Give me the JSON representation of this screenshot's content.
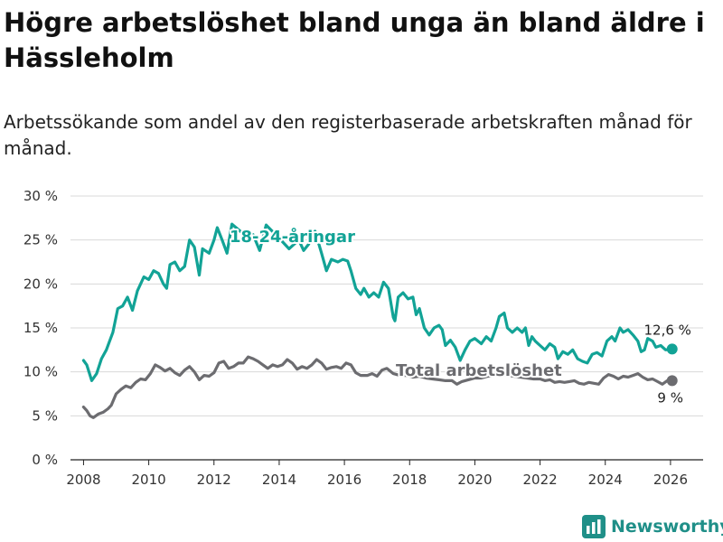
{
  "chart_data": {
    "type": "line",
    "title": "Högre arbetslöshet bland unga än bland äldre i Hässleholm",
    "subtitle": "Arbetssökande som andel av den registerbaserade arbetskraften månad för månad.",
    "xlabel": "",
    "ylabel": "",
    "xlim": [
      2007.6,
      2027.0
    ],
    "ylim": [
      0,
      30
    ],
    "x_ticks": [
      "2008",
      "2010",
      "2012",
      "2014",
      "2016",
      "2018",
      "2020",
      "2022",
      "2024",
      "2026"
    ],
    "y_ticks": [
      "0 %",
      "5 %",
      "10 %",
      "15 %",
      "20 %",
      "25 %",
      "30 %"
    ],
    "grid": "horizontal",
    "series": [
      {
        "name": "18-24-åringar",
        "label": "18-24-åringar",
        "color": "#12a396",
        "end_label": "12,6 %",
        "points": [
          [
            2008.0,
            11.3
          ],
          [
            2008.1,
            10.8
          ],
          [
            2008.25,
            9.0
          ],
          [
            2008.4,
            9.8
          ],
          [
            2008.55,
            11.5
          ],
          [
            2008.7,
            12.5
          ],
          [
            2008.9,
            14.5
          ],
          [
            2009.05,
            17.2
          ],
          [
            2009.2,
            17.5
          ],
          [
            2009.35,
            18.5
          ],
          [
            2009.5,
            17.0
          ],
          [
            2009.65,
            19.2
          ],
          [
            2009.85,
            20.8
          ],
          [
            2010.0,
            20.5
          ],
          [
            2010.15,
            21.5
          ],
          [
            2010.3,
            21.2
          ],
          [
            2010.45,
            20.0
          ],
          [
            2010.55,
            19.5
          ],
          [
            2010.65,
            22.2
          ],
          [
            2010.8,
            22.5
          ],
          [
            2010.95,
            21.5
          ],
          [
            2011.1,
            22.0
          ],
          [
            2011.25,
            25.0
          ],
          [
            2011.4,
            24.2
          ],
          [
            2011.55,
            21.0
          ],
          [
            2011.65,
            24.0
          ],
          [
            2011.85,
            23.5
          ],
          [
            2012.0,
            25.0
          ],
          [
            2012.1,
            26.4
          ],
          [
            2012.25,
            25.0
          ],
          [
            2012.4,
            23.5
          ],
          [
            2012.55,
            26.8
          ],
          [
            2013.0,
            25.4
          ],
          [
            2013.2,
            25.6
          ],
          [
            2013.4,
            23.8
          ],
          [
            2013.6,
            26.7
          ],
          [
            2014.0,
            25.2
          ],
          [
            2014.3,
            24.0
          ],
          [
            2014.6,
            25.0
          ],
          [
            2014.75,
            23.8
          ],
          [
            2014.9,
            24.5
          ],
          [
            2015.1,
            26.0
          ],
          [
            2015.3,
            23.5
          ],
          [
            2015.45,
            21.5
          ],
          [
            2015.6,
            22.8
          ],
          [
            2015.8,
            22.5
          ],
          [
            2015.95,
            22.8
          ],
          [
            2016.1,
            22.6
          ],
          [
            2016.2,
            21.5
          ],
          [
            2016.35,
            19.5
          ],
          [
            2016.5,
            18.8
          ],
          [
            2016.6,
            19.5
          ],
          [
            2016.75,
            18.5
          ],
          [
            2016.9,
            19.0
          ],
          [
            2017.05,
            18.5
          ],
          [
            2017.2,
            20.2
          ],
          [
            2017.35,
            19.5
          ],
          [
            2017.5,
            16.2
          ],
          [
            2017.55,
            15.8
          ],
          [
            2017.65,
            18.5
          ],
          [
            2017.8,
            19.0
          ],
          [
            2017.95,
            18.3
          ],
          [
            2018.1,
            18.5
          ],
          [
            2018.2,
            16.5
          ],
          [
            2018.3,
            17.2
          ],
          [
            2018.45,
            15.0
          ],
          [
            2018.6,
            14.2
          ],
          [
            2018.75,
            15.0
          ],
          [
            2018.9,
            15.3
          ],
          [
            2019.0,
            14.8
          ],
          [
            2019.1,
            13.0
          ],
          [
            2019.25,
            13.6
          ],
          [
            2019.4,
            12.8
          ],
          [
            2019.55,
            11.3
          ],
          [
            2019.7,
            12.5
          ],
          [
            2019.85,
            13.5
          ],
          [
            2020.0,
            13.8
          ],
          [
            2020.2,
            13.2
          ],
          [
            2020.35,
            14.0
          ],
          [
            2020.5,
            13.5
          ],
          [
            2020.65,
            15.0
          ],
          [
            2020.75,
            16.3
          ],
          [
            2020.9,
            16.7
          ],
          [
            2021.0,
            15.0
          ],
          [
            2021.15,
            14.5
          ],
          [
            2021.3,
            15.0
          ],
          [
            2021.45,
            14.5
          ],
          [
            2021.55,
            15.0
          ],
          [
            2021.65,
            13.0
          ],
          [
            2021.75,
            14.0
          ],
          [
            2021.85,
            13.5
          ],
          [
            2022.0,
            13.0
          ],
          [
            2022.15,
            12.5
          ],
          [
            2022.3,
            13.2
          ],
          [
            2022.45,
            12.8
          ],
          [
            2022.55,
            11.5
          ],
          [
            2022.7,
            12.3
          ],
          [
            2022.85,
            12.0
          ],
          [
            2023.0,
            12.5
          ],
          [
            2023.15,
            11.5
          ],
          [
            2023.3,
            11.2
          ],
          [
            2023.45,
            11.0
          ],
          [
            2023.6,
            12.0
          ],
          [
            2023.75,
            12.2
          ],
          [
            2023.9,
            11.8
          ],
          [
            2024.05,
            13.5
          ],
          [
            2024.2,
            14.0
          ],
          [
            2024.3,
            13.5
          ],
          [
            2024.45,
            15.0
          ],
          [
            2024.55,
            14.5
          ],
          [
            2024.7,
            14.8
          ],
          [
            2024.85,
            14.2
          ],
          [
            2025.0,
            13.5
          ],
          [
            2025.1,
            12.3
          ],
          [
            2025.2,
            12.5
          ],
          [
            2025.3,
            13.8
          ],
          [
            2025.45,
            13.5
          ],
          [
            2025.55,
            12.8
          ],
          [
            2025.7,
            13.0
          ],
          [
            2025.85,
            12.5
          ],
          [
            2026.05,
            12.6
          ]
        ]
      },
      {
        "name": "Total arbetslöshet",
        "label": "Total arbetslöshet",
        "color": "#6c6c70",
        "end_label": "9 %",
        "points": [
          [
            2008.0,
            6.0
          ],
          [
            2008.1,
            5.6
          ],
          [
            2008.2,
            5.0
          ],
          [
            2008.3,
            4.8
          ],
          [
            2008.45,
            5.2
          ],
          [
            2008.6,
            5.4
          ],
          [
            2008.75,
            5.8
          ],
          [
            2008.85,
            6.2
          ],
          [
            2009.0,
            7.5
          ],
          [
            2009.15,
            8.0
          ],
          [
            2009.3,
            8.4
          ],
          [
            2009.45,
            8.2
          ],
          [
            2009.6,
            8.8
          ],
          [
            2009.75,
            9.2
          ],
          [
            2009.9,
            9.1
          ],
          [
            2010.05,
            9.8
          ],
          [
            2010.2,
            10.8
          ],
          [
            2010.35,
            10.5
          ],
          [
            2010.5,
            10.1
          ],
          [
            2010.65,
            10.4
          ],
          [
            2010.8,
            9.9
          ],
          [
            2010.95,
            9.6
          ],
          [
            2011.1,
            10.2
          ],
          [
            2011.25,
            10.6
          ],
          [
            2011.4,
            10.0
          ],
          [
            2011.55,
            9.1
          ],
          [
            2011.7,
            9.6
          ],
          [
            2011.85,
            9.5
          ],
          [
            2012.0,
            9.9
          ],
          [
            2012.15,
            11.0
          ],
          [
            2012.3,
            11.2
          ],
          [
            2012.45,
            10.4
          ],
          [
            2012.6,
            10.6
          ],
          [
            2012.75,
            11.0
          ],
          [
            2012.9,
            11.0
          ],
          [
            2013.05,
            11.7
          ],
          [
            2013.2,
            11.5
          ],
          [
            2013.35,
            11.2
          ],
          [
            2013.5,
            10.8
          ],
          [
            2013.65,
            10.4
          ],
          [
            2013.8,
            10.8
          ],
          [
            2013.95,
            10.6
          ],
          [
            2014.1,
            10.8
          ],
          [
            2014.25,
            11.4
          ],
          [
            2014.4,
            11.0
          ],
          [
            2014.55,
            10.3
          ],
          [
            2014.7,
            10.6
          ],
          [
            2014.85,
            10.4
          ],
          [
            2015.0,
            10.8
          ],
          [
            2015.15,
            11.4
          ],
          [
            2015.3,
            11.0
          ],
          [
            2015.45,
            10.3
          ],
          [
            2015.6,
            10.5
          ],
          [
            2015.75,
            10.6
          ],
          [
            2015.9,
            10.4
          ],
          [
            2016.05,
            11.0
          ],
          [
            2016.2,
            10.8
          ],
          [
            2016.35,
            9.9
          ],
          [
            2016.5,
            9.6
          ],
          [
            2016.7,
            9.6
          ],
          [
            2016.85,
            9.8
          ],
          [
            2017.0,
            9.5
          ],
          [
            2017.15,
            10.2
          ],
          [
            2017.3,
            10.4
          ],
          [
            2017.5,
            9.8
          ],
          [
            2017.7,
            9.6
          ],
          [
            2017.9,
            9.6
          ],
          [
            2018.1,
            9.4
          ],
          [
            2018.3,
            9.5
          ],
          [
            2018.5,
            9.3
          ],
          [
            2018.7,
            9.2
          ],
          [
            2018.9,
            9.1
          ],
          [
            2019.1,
            9.0
          ],
          [
            2019.3,
            9.0
          ],
          [
            2019.45,
            8.6
          ],
          [
            2019.6,
            8.9
          ],
          [
            2019.8,
            9.1
          ],
          [
            2020.0,
            9.3
          ],
          [
            2020.2,
            9.3
          ],
          [
            2020.4,
            9.5
          ],
          [
            2020.6,
            9.6
          ],
          [
            2020.8,
            9.7
          ],
          [
            2021.0,
            9.6
          ],
          [
            2021.2,
            9.5
          ],
          [
            2021.4,
            9.4
          ],
          [
            2021.6,
            9.3
          ],
          [
            2021.8,
            9.2
          ],
          [
            2022.0,
            9.2
          ],
          [
            2022.15,
            9.0
          ],
          [
            2022.3,
            9.1
          ],
          [
            2022.45,
            8.8
          ],
          [
            2022.6,
            8.9
          ],
          [
            2022.75,
            8.8
          ],
          [
            2022.9,
            8.9
          ],
          [
            2023.05,
            9.0
          ],
          [
            2023.2,
            8.7
          ],
          [
            2023.35,
            8.6
          ],
          [
            2023.5,
            8.8
          ],
          [
            2023.65,
            8.7
          ],
          [
            2023.8,
            8.6
          ],
          [
            2023.95,
            9.3
          ],
          [
            2024.1,
            9.7
          ],
          [
            2024.25,
            9.5
          ],
          [
            2024.4,
            9.2
          ],
          [
            2024.55,
            9.5
          ],
          [
            2024.7,
            9.4
          ],
          [
            2024.85,
            9.6
          ],
          [
            2025.0,
            9.8
          ],
          [
            2025.15,
            9.4
          ],
          [
            2025.3,
            9.1
          ],
          [
            2025.45,
            9.2
          ],
          [
            2025.6,
            8.9
          ],
          [
            2025.75,
            8.6
          ],
          [
            2025.9,
            9.0
          ],
          [
            2026.05,
            9.0
          ]
        ]
      }
    ]
  },
  "logo": {
    "text": "Newsworthy",
    "color": "#1f8f88"
  }
}
